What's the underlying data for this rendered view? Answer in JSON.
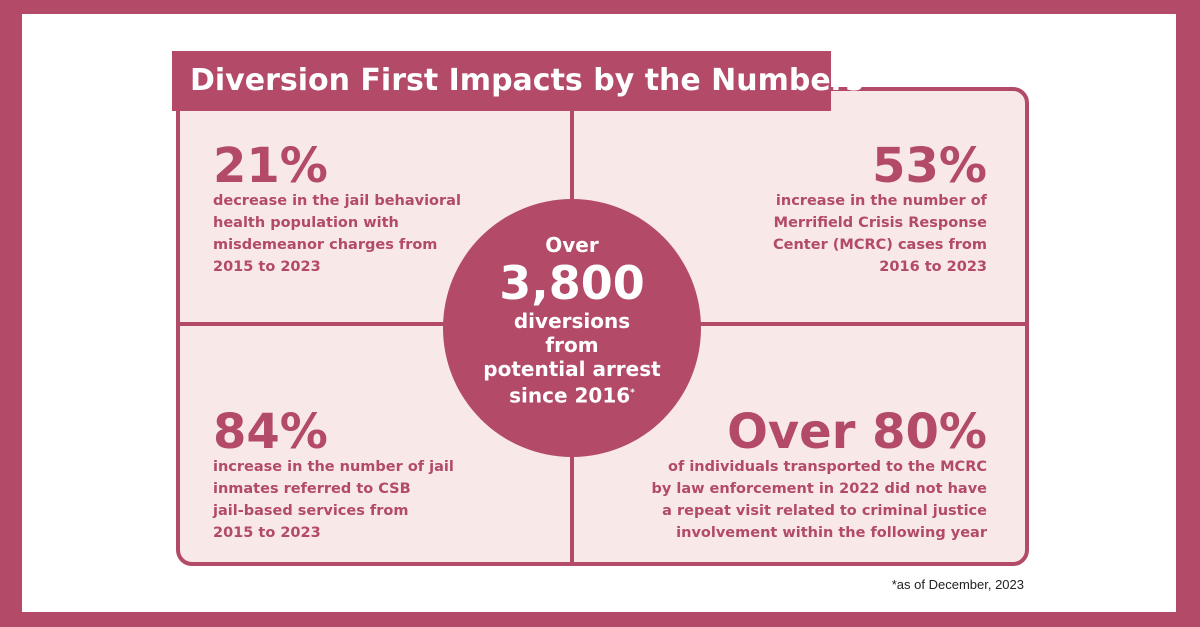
{
  "title": "Diversion First Impacts by the Numbers",
  "center": {
    "over": "Over",
    "number": "3,800",
    "lines": [
      "diversions",
      "from",
      "potential arrest",
      "since 2016"
    ],
    "footnote_mark": "*"
  },
  "stats": [
    {
      "value": "21%",
      "lines": [
        "decrease in the jail behavioral",
        "health population with",
        "misdemeanor charges from",
        "2015 to 2023"
      ]
    },
    {
      "value": "53%",
      "lines": [
        "increase in the number of",
        "Merrifield Crisis Response",
        "Center (MCRC) cases from",
        "2016 to 2023"
      ]
    },
    {
      "value": "84%",
      "lines": [
        "increase in the number of jail",
        "inmates referred to CSB",
        "jail-based services from",
        "2015 to 2023"
      ]
    },
    {
      "value": "Over 80%",
      "lines": [
        "of individuals transported to the MCRC",
        "by law enforcement in 2022 did not have",
        "a repeat visit related to criminal justice",
        "involvement within the following year"
      ]
    }
  ],
  "footnote": "*as of December, 2023",
  "colors": {
    "accent": "#b24a68",
    "panel": "#f8e8e7",
    "background": "#ffffff"
  }
}
